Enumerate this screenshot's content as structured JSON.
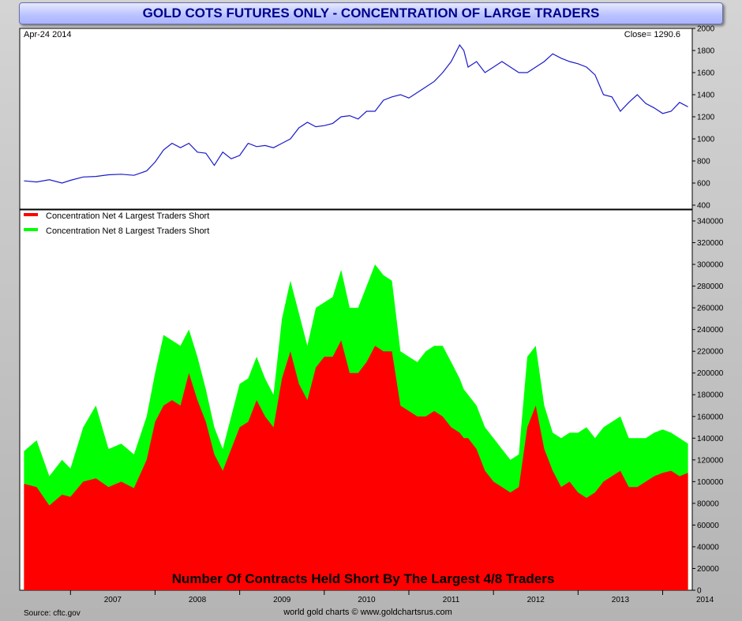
{
  "title": "GOLD COTS FUTURES ONLY - CONCENTRATION OF LARGE TRADERS",
  "colors": {
    "price_line": "#1a1acc",
    "net4": "#ff0000",
    "net8": "#00ff00"
  },
  "chart_data": [
    {
      "type": "line",
      "date_label": "Apr-24  2014",
      "close_label": "Close= 1290.6",
      "ylim": [
        400,
        2000
      ],
      "yticks": [
        "2000",
        "1800",
        "1600",
        "1400",
        "1200",
        "1000",
        "800",
        "600",
        "400"
      ],
      "x": [
        2006.45,
        2006.6,
        2006.75,
        2006.9,
        2007.0,
        2007.15,
        2007.3,
        2007.45,
        2007.6,
        2007.75,
        2007.9,
        2008.0,
        2008.1,
        2008.2,
        2008.3,
        2008.4,
        2008.5,
        2008.6,
        2008.7,
        2008.8,
        2008.9,
        2009.0,
        2009.1,
        2009.2,
        2009.3,
        2009.4,
        2009.5,
        2009.6,
        2009.7,
        2009.8,
        2009.9,
        2010.0,
        2010.1,
        2010.2,
        2010.3,
        2010.4,
        2010.5,
        2010.6,
        2010.7,
        2010.8,
        2010.9,
        2011.0,
        2011.1,
        2011.2,
        2011.3,
        2011.4,
        2011.5,
        2011.6,
        2011.65,
        2011.7,
        2011.8,
        2011.9,
        2012.0,
        2012.1,
        2012.2,
        2012.3,
        2012.4,
        2012.5,
        2012.6,
        2012.7,
        2012.8,
        2012.9,
        2013.0,
        2013.1,
        2013.2,
        2013.3,
        2013.4,
        2013.5,
        2013.6,
        2013.7,
        2013.8,
        2013.9,
        2014.0,
        2014.1,
        2014.2,
        2014.3
      ],
      "y": [
        620,
        610,
        630,
        600,
        625,
        655,
        660,
        675,
        680,
        670,
        710,
        790,
        900,
        960,
        920,
        960,
        880,
        870,
        760,
        880,
        820,
        850,
        960,
        930,
        940,
        920,
        960,
        1000,
        1100,
        1150,
        1110,
        1120,
        1140,
        1200,
        1210,
        1180,
        1250,
        1250,
        1350,
        1380,
        1400,
        1370,
        1420,
        1470,
        1520,
        1600,
        1700,
        1850,
        1800,
        1650,
        1700,
        1600,
        1650,
        1700,
        1650,
        1600,
        1600,
        1650,
        1700,
        1770,
        1730,
        1700,
        1680,
        1650,
        1580,
        1400,
        1380,
        1250,
        1330,
        1400,
        1320,
        1280,
        1230,
        1250,
        1330,
        1290
      ]
    },
    {
      "type": "area",
      "ylim": [
        0,
        340000
      ],
      "yticks": [
        "340000",
        "320000",
        "300000",
        "280000",
        "260000",
        "240000",
        "220000",
        "200000",
        "180000",
        "160000",
        "140000",
        "120000",
        "100000",
        "80000",
        "60000",
        "40000",
        "20000",
        "0"
      ],
      "xticks": [
        "2007",
        "2008",
        "2009",
        "2010",
        "2011",
        "2012",
        "2013",
        "2014"
      ],
      "bottom_label": "Number Of Contracts Held Short By The Largest 4/8 Traders",
      "x": [
        2006.45,
        2006.6,
        2006.75,
        2006.9,
        2007.0,
        2007.15,
        2007.3,
        2007.45,
        2007.6,
        2007.75,
        2007.9,
        2008.0,
        2008.1,
        2008.2,
        2008.3,
        2008.4,
        2008.5,
        2008.6,
        2008.7,
        2008.8,
        2008.9,
        2009.0,
        2009.1,
        2009.2,
        2009.3,
        2009.4,
        2009.5,
        2009.6,
        2009.7,
        2009.8,
        2009.9,
        2010.0,
        2010.1,
        2010.2,
        2010.3,
        2010.4,
        2010.5,
        2010.6,
        2010.7,
        2010.8,
        2010.9,
        2011.0,
        2011.1,
        2011.2,
        2011.3,
        2011.4,
        2011.5,
        2011.6,
        2011.65,
        2011.7,
        2011.8,
        2011.9,
        2012.0,
        2012.1,
        2012.2,
        2012.3,
        2012.4,
        2012.5,
        2012.6,
        2012.7,
        2012.8,
        2012.9,
        2013.0,
        2013.1,
        2013.2,
        2013.3,
        2013.4,
        2013.5,
        2013.6,
        2013.7,
        2013.8,
        2013.9,
        2014.0,
        2014.1,
        2014.2,
        2014.3
      ],
      "series": [
        {
          "name": "Concentration Net 4 Largest Traders Short",
          "values": [
            98000,
            95000,
            78000,
            88000,
            86000,
            100000,
            103000,
            95000,
            100000,
            94000,
            120000,
            155000,
            170000,
            175000,
            170000,
            200000,
            175000,
            155000,
            125000,
            110000,
            130000,
            150000,
            155000,
            175000,
            160000,
            150000,
            195000,
            220000,
            190000,
            175000,
            205000,
            215000,
            215000,
            230000,
            200000,
            200000,
            210000,
            225000,
            220000,
            220000,
            170000,
            165000,
            160000,
            160000,
            165000,
            160000,
            150000,
            145000,
            140000,
            140000,
            130000,
            110000,
            100000,
            95000,
            90000,
            95000,
            150000,
            170000,
            130000,
            110000,
            95000,
            100000,
            90000,
            85000,
            90000,
            100000,
            105000,
            110000,
            95000,
            95000,
            100000,
            105000,
            108000,
            110000,
            105000,
            108000
          ]
        },
        {
          "name": "Concentration Net 8 Largest Traders Short",
          "values": [
            128000,
            138000,
            105000,
            120000,
            112000,
            150000,
            170000,
            130000,
            135000,
            125000,
            160000,
            200000,
            235000,
            230000,
            225000,
            240000,
            215000,
            185000,
            150000,
            130000,
            160000,
            190000,
            195000,
            215000,
            195000,
            180000,
            250000,
            285000,
            255000,
            225000,
            260000,
            265000,
            270000,
            295000,
            260000,
            260000,
            280000,
            300000,
            290000,
            285000,
            220000,
            215000,
            210000,
            220000,
            225000,
            225000,
            210000,
            195000,
            185000,
            180000,
            170000,
            150000,
            140000,
            130000,
            120000,
            125000,
            215000,
            225000,
            170000,
            145000,
            140000,
            145000,
            145000,
            150000,
            140000,
            150000,
            155000,
            160000,
            140000,
            140000,
            140000,
            145000,
            148000,
            145000,
            140000,
            135000
          ]
        }
      ]
    }
  ],
  "footer": {
    "source": "Source: cftc.gov",
    "credit": "world gold charts © www.goldchartsrus.com"
  }
}
